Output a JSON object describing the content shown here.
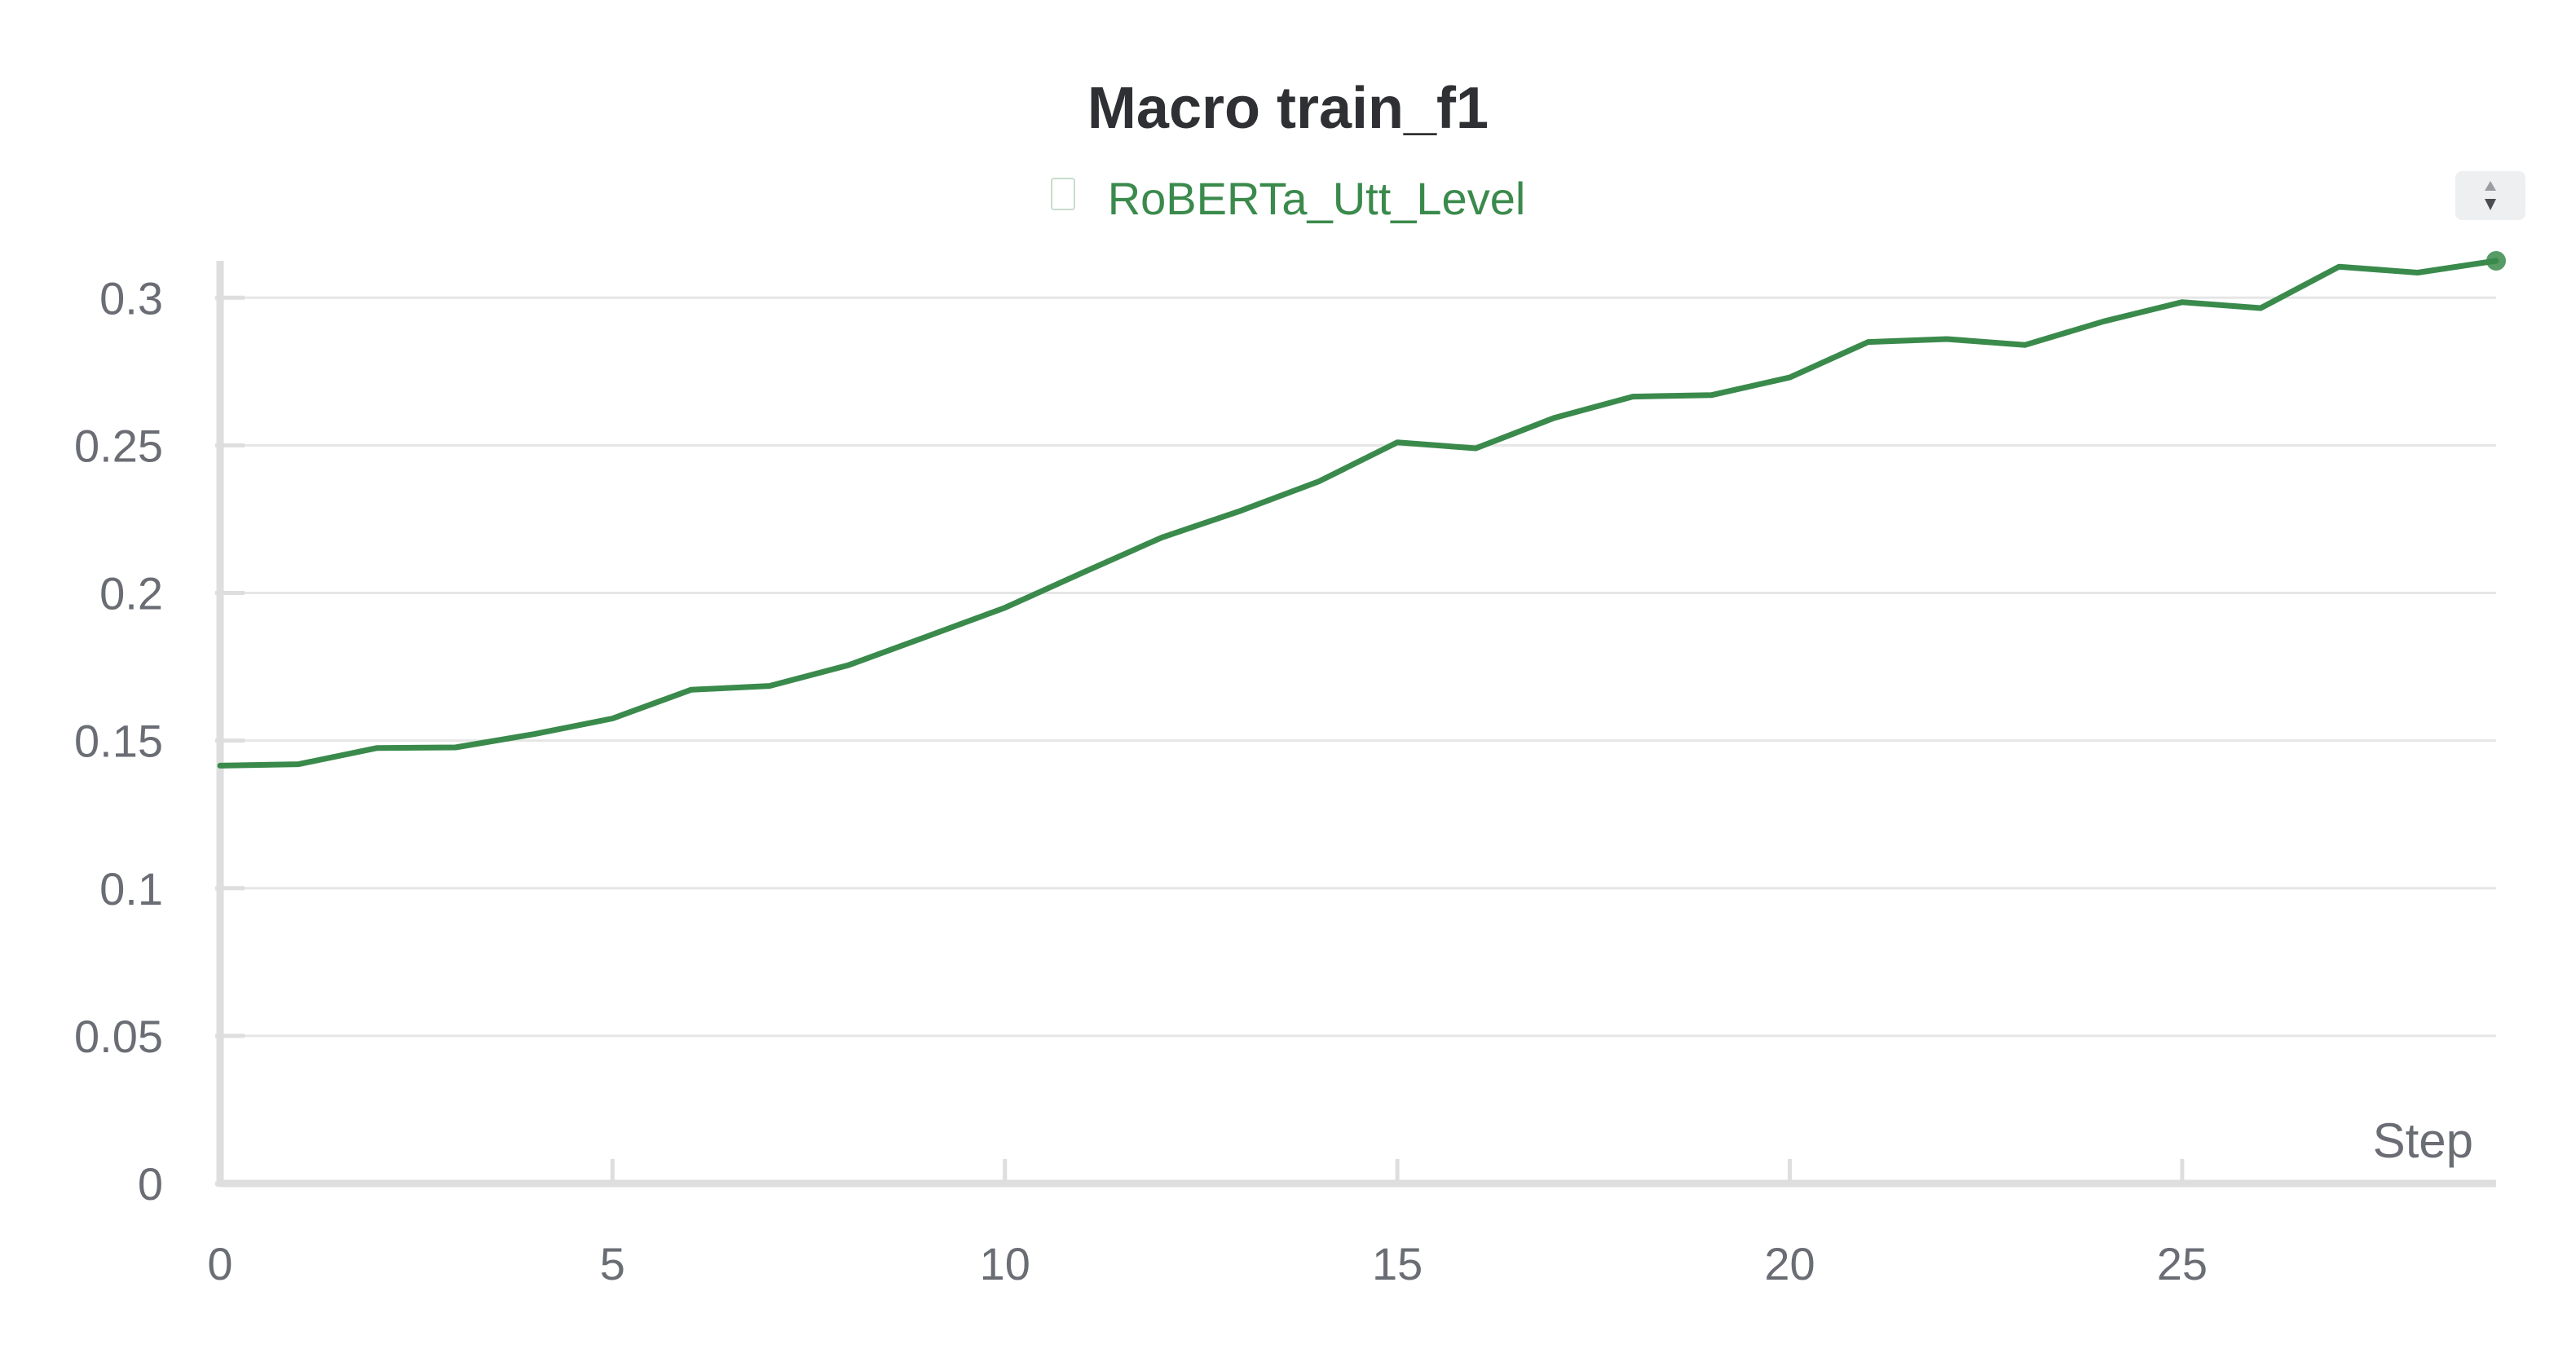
{
  "colors": {
    "series": "#3a8a4c",
    "grid": "#e6e6e6",
    "axis": "#dedede",
    "text": "#6b6d75",
    "title": "#2f3033"
  },
  "chart_data": {
    "type": "line",
    "title": "Macro train_f1",
    "xlabel": "Step",
    "ylabel": "",
    "xlim": [
      0,
      29
    ],
    "ylim": [
      0,
      0.3125
    ],
    "xticks": [
      0,
      5,
      10,
      15,
      20,
      25
    ],
    "xtick_labels": [
      "0",
      "5",
      "10",
      "15",
      "20",
      "25"
    ],
    "yticks": [
      0,
      0.05,
      0.1,
      0.15,
      0.2,
      0.25,
      0.3
    ],
    "ytick_labels": [
      "0",
      "0.05",
      "0.1",
      "0.15",
      "0.2",
      "0.25",
      "0.3"
    ],
    "grid": true,
    "legend_position": "top-center",
    "series": [
      {
        "name": "RoBERTa_Utt_Level",
        "color": "#3a8a4c",
        "x": [
          0,
          1,
          2,
          3,
          4,
          5,
          6,
          7,
          8,
          9,
          10,
          11,
          12,
          13,
          14,
          15,
          16,
          17,
          18,
          19,
          20,
          21,
          22,
          23,
          24,
          25,
          26,
          27,
          28,
          29
        ],
        "y": [
          0.1415,
          0.142,
          0.1475,
          0.1477,
          0.1522,
          0.1575,
          0.1672,
          0.1685,
          0.1755,
          0.1852,
          0.195,
          0.207,
          0.2188,
          0.2278,
          0.2378,
          0.251,
          0.249,
          0.2593,
          0.2665,
          0.267,
          0.273,
          0.285,
          0.286,
          0.284,
          0.292,
          0.2985,
          0.2965,
          0.3105,
          0.3085,
          0.3125
        ]
      }
    ]
  }
}
